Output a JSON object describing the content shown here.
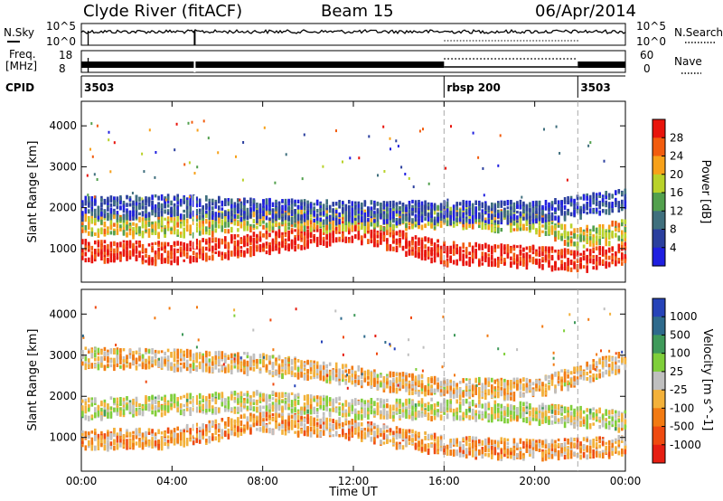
{
  "header": {
    "station": "Clyde River (fitACF)",
    "beam": "Beam 15",
    "date": "06/Apr/2014"
  },
  "noise_panel": {
    "left_label": "N.Sky",
    "right_label": "N.Search",
    "left_ticks": [
      "10^5",
      "10^0"
    ],
    "right_ticks": [
      "10^5",
      "10^0"
    ]
  },
  "freq_panel": {
    "left_label_1": "Freq.",
    "left_label_2": "[MHz]",
    "right_label": "Nave",
    "left_ticks": [
      "18",
      "8"
    ],
    "right_ticks": [
      "60",
      "0"
    ]
  },
  "cpid_panel": {
    "label": "CPID",
    "segments": [
      {
        "text": "3503",
        "start_hour": 0
      },
      {
        "text": "rbsp 200",
        "start_hour": 16
      },
      {
        "text": "3503",
        "start_hour": 21.9
      }
    ]
  },
  "power_panel": {
    "ylabel": "Slant Range [km]",
    "cbar_label": "Power [dB]",
    "cbar_ticks": [
      "28",
      "24",
      "20",
      "16",
      "12",
      "8",
      "4"
    ],
    "cbar_colors": [
      "#e8140c",
      "#f25c0e",
      "#f7a11a",
      "#b9d22a",
      "#52a04d",
      "#3f6f7d",
      "#2b3f9e",
      "#1f1fe0"
    ]
  },
  "velocity_panel": {
    "ylabel": "Slant Range [km]",
    "cbar_label": "Velocity [m s^-1]",
    "cbar_ticks": [
      "1000",
      "500",
      "100",
      "25",
      "-25",
      "-100",
      "-500",
      "-1000"
    ],
    "cbar_colors": [
      "#2643b8",
      "#2e6a8c",
      "#3f9a5a",
      "#7fcf3a",
      "#bfbfbf",
      "#f3b13a",
      "#f27a12",
      "#ef4a10",
      "#e61e12"
    ]
  },
  "x_axis": {
    "title": "Time UT",
    "ticks": [
      "00:00",
      "04:00",
      "08:00",
      "12:00",
      "16:00",
      "20:00",
      "00:00"
    ]
  },
  "y_axis": {
    "ticks": [
      "1000",
      "2000",
      "3000",
      "4000"
    ]
  },
  "chart_data": [
    {
      "type": "heatmap",
      "title": "Clyde River (fitACF)",
      "subtitle": "Power",
      "xlabel": "Time UT",
      "ylabel": "Slant Range [km]",
      "xlim": [
        0,
        24
      ],
      "ylim": [
        180,
        4600
      ],
      "zlim": [
        0,
        30
      ],
      "zlabel": "Power [dB]",
      "bands": [
        {
          "t": [
            0,
            4,
            8,
            12,
            16,
            20,
            21.9,
            24
          ],
          "range_center": [
            950,
            900,
            1150,
            1450,
            900,
            800,
            700,
            900
          ],
          "value": 28
        },
        {
          "t": [
            0,
            4,
            8,
            12,
            16,
            20,
            21.9,
            24
          ],
          "range_center": [
            1600,
            1550,
            1750,
            1700,
            1800,
            1650,
            1250,
            1450
          ],
          "value": 18
        },
        {
          "t": [
            0,
            4,
            8,
            12,
            16,
            20,
            24
          ],
          "range_center": [
            2000,
            2050,
            1950,
            1900,
            1900,
            1900,
            2200
          ],
          "value": 6
        }
      ]
    },
    {
      "type": "heatmap",
      "subtitle": "Velocity",
      "xlabel": "Time UT",
      "ylabel": "Slant Range [km]",
      "xlim": [
        0,
        24
      ],
      "ylim": [
        180,
        4600
      ],
      "zlim": [
        -1000,
        1000
      ],
      "zlabel": "Velocity [m s^-1]",
      "bands": [
        {
          "t": [
            0,
            4,
            8,
            12,
            16,
            20,
            24
          ],
          "range_center": [
            950,
            1000,
            1400,
            1200,
            800,
            700,
            800
          ],
          "value": -300
        },
        {
          "t": [
            0,
            4,
            8,
            12,
            16,
            20,
            24
          ],
          "range_center": [
            1700,
            1800,
            1900,
            1700,
            1700,
            1600,
            1400
          ],
          "value": 0
        },
        {
          "t": [
            0,
            4,
            8,
            12,
            16,
            20,
            24
          ],
          "range_center": [
            2950,
            2900,
            2800,
            2500,
            2200,
            2200,
            2900
          ],
          "value": -200
        }
      ]
    }
  ]
}
